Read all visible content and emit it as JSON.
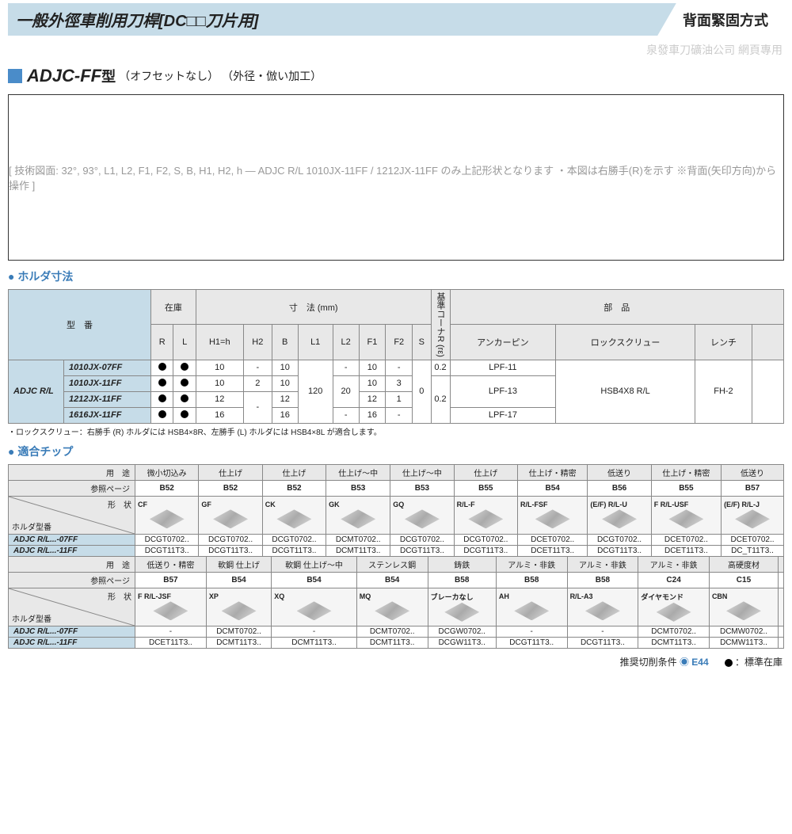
{
  "header": {
    "title": "一般外徑車削用刀桿[DC□□刀片用]",
    "method": "背面緊固方式",
    "watermark": "泉發車刀礦油公司 網頁專用"
  },
  "model": {
    "prefix": "ADJC-FF",
    "suffix": "型",
    "note1": "（オフセットなし）",
    "note2": "（外径・倣い加工）"
  },
  "diagram": {
    "placeholder": "[ 技術図面: 32°, 93°, L1, L2, F1, F2, S, B, H1, H2, h — ADJC R/L 1010JX-11FF / 1212JX-11FF のみ上記形状となります ・本図は右勝手(R)を示す ※背面(矢印方向)から操作 ]"
  },
  "holder": {
    "section": "ホルダ寸法",
    "cols": {
      "type": "型　番",
      "stock": "在庫",
      "dim": "寸　法 (mm)",
      "corner": "基準コーナR (rε)",
      "parts": "部　品",
      "R": "R",
      "L": "L",
      "H1h": "H1=h",
      "H2": "H2",
      "B": "B",
      "L1": "L1",
      "L2": "L2",
      "F1": "F1",
      "F2": "F2",
      "S": "S",
      "anchor": "アンカーピン",
      "lock": "ロックスクリュー",
      "wrench": "レンチ"
    },
    "prefix": "ADJC R/L",
    "rows": [
      {
        "model": "1010JX-07FF",
        "R": "●",
        "L": "●",
        "H1h": "10",
        "H2": "-",
        "B": "10",
        "L1": "",
        "L2": "-",
        "F1": "10",
        "F2": "-",
        "S": "",
        "re": "0.2",
        "anchor": "LPF-11",
        "lock": "",
        "wrench": ""
      },
      {
        "model": "1010JX-11FF",
        "R": "●",
        "L": "●",
        "H1h": "10",
        "H2": "2",
        "B": "10",
        "L1": "",
        "L2": "",
        "F1": "10",
        "F2": "3",
        "S": "",
        "re": "",
        "anchor": "LPF-13",
        "lock": "",
        "wrench": ""
      },
      {
        "model": "1212JX-11FF",
        "R": "●",
        "L": "●",
        "H1h": "12",
        "H2": "",
        "B": "12",
        "L1": "",
        "L2": "",
        "F1": "12",
        "F2": "1",
        "S": "",
        "re": "",
        "anchor": "",
        "lock": "",
        "wrench": ""
      },
      {
        "model": "1616JX-11FF",
        "R": "●",
        "L": "●",
        "H1h": "16",
        "H2": "",
        "B": "16",
        "L1": "",
        "L2": "-",
        "F1": "16",
        "F2": "-",
        "S": "",
        "re": "",
        "anchor": "LPF-17",
        "lock": "",
        "wrench": ""
      }
    ],
    "merged": {
      "L1": "120",
      "L2": "20",
      "S": "0",
      "H2b": "-",
      "re2": "0.2",
      "lock": "HSB4X8 R/L",
      "wrench": "FH-2"
    },
    "note": "・ロックスクリュー：右勝手 (R) ホルダには HSB4×8R、左勝手 (L) ホルダには HSB4×8L が適合します。"
  },
  "chips": {
    "section": "適合チップ",
    "labels": {
      "use": "用　途",
      "page": "参照ページ",
      "shape": "形　状",
      "holder": "ホルダ型番"
    },
    "block1": {
      "uses": [
        "微小切込み",
        "仕上げ",
        "仕上げ",
        "仕上げ～中",
        "仕上げ～中",
        "仕上げ",
        "仕上げ・精密",
        "低送り",
        "仕上げ・精密",
        "低送り"
      ],
      "pages": [
        "B52",
        "B52",
        "B52",
        "B53",
        "B53",
        "B55",
        "B54",
        "B56",
        "B55",
        "B57"
      ],
      "shapes": [
        "CF",
        "GF",
        "CK",
        "GK",
        "GQ",
        "R/L-F",
        "R/L-FSF",
        "(E/F) R/L-U",
        "F R/L-USF",
        "(E/F) R/L-J"
      ],
      "row07_label": "ADJC R/L...-07FF",
      "row07": [
        "DCGT0702..",
        "DCGT0702..",
        "DCGT0702..",
        "DCMT0702..",
        "DCGT0702..",
        "DCGT0702..",
        "DCET0702..",
        "DCGT0702..",
        "DCET0702..",
        "DCET0702.."
      ],
      "row11_label": "ADJC R/L...-11FF",
      "row11": [
        "DCGT11T3..",
        "DCGT11T3..",
        "DCGT11T3..",
        "DCMT11T3..",
        "DCGT11T3..",
        "DCGT11T3..",
        "DCET11T3..",
        "DCGT11T3..",
        "DCET11T3..",
        "DC_T11T3.."
      ]
    },
    "block2": {
      "uses": [
        "低送り・精密",
        "軟鋼 仕上げ",
        "軟鋼 仕上げ～中",
        "ステンレス鋼",
        "鋳鉄",
        "アルミ・非鉄",
        "アルミ・非鉄",
        "アルミ・非鉄",
        "高硬度材"
      ],
      "pages": [
        "B57",
        "B54",
        "B54",
        "B54",
        "B58",
        "B58",
        "B58",
        "C24",
        "C15"
      ],
      "shapes": [
        "F R/L-JSF",
        "XP",
        "XQ",
        "MQ",
        "ブレーカなし",
        "AH",
        "R/L-A3",
        "ダイヤモンド",
        "CBN"
      ],
      "row07_label": "ADJC R/L...-07FF",
      "row07": [
        "-",
        "DCMT0702..",
        "-",
        "DCMT0702..",
        "DCGW0702..",
        "-",
        "-",
        "DCMT0702..",
        "DCMW0702.."
      ],
      "row11_label": "ADJC R/L...-11FF",
      "row11": [
        "DCET11T3..",
        "DCMT11T3..",
        "DCMT11T3..",
        "DCMT11T3..",
        "DCGW11T3..",
        "DCGT11T3..",
        "DCGT11T3..",
        "DCMT11T3..",
        "DCMW11T3.."
      ]
    }
  },
  "footer": {
    "rec": "推奨切削条件",
    "reclink": "E44",
    "stock": "：標準在庫"
  }
}
